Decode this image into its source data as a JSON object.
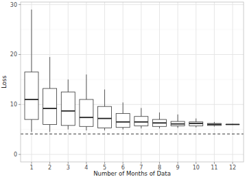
{
  "chart_data": {
    "type": "box",
    "x_label": "Number of Months of Data",
    "y_label": "Loss",
    "categories": [
      "1",
      "2",
      "3",
      "4",
      "5",
      "6",
      "7",
      "8",
      "9",
      "10",
      "11",
      "12"
    ],
    "min": [
      4.5,
      4.5,
      5.0,
      4.8,
      4.8,
      5.0,
      5.2,
      5.2,
      5.3,
      5.4,
      5.6,
      5.9
    ],
    "q1": [
      7.0,
      6.0,
      5.8,
      5.6,
      5.3,
      5.4,
      5.7,
      5.6,
      5.7,
      5.7,
      5.8,
      6.0
    ],
    "median": [
      11.0,
      9.2,
      8.7,
      7.4,
      7.2,
      6.5,
      6.5,
      6.3,
      6.1,
      6.2,
      6.0,
      6.0
    ],
    "q3": [
      16.5,
      13.2,
      12.5,
      11.0,
      9.6,
      8.2,
      7.6,
      7.0,
      6.6,
      6.5,
      6.2,
      6.0
    ],
    "max": [
      29.0,
      19.5,
      15.0,
      16.0,
      13.0,
      10.4,
      9.3,
      8.4,
      8.0,
      7.2,
      6.5,
      6.1
    ],
    "reference_line": 4.1,
    "ylim": [
      -1.5,
      30.5
    ],
    "yticks": [
      0,
      10,
      20,
      30
    ],
    "grid": true
  }
}
